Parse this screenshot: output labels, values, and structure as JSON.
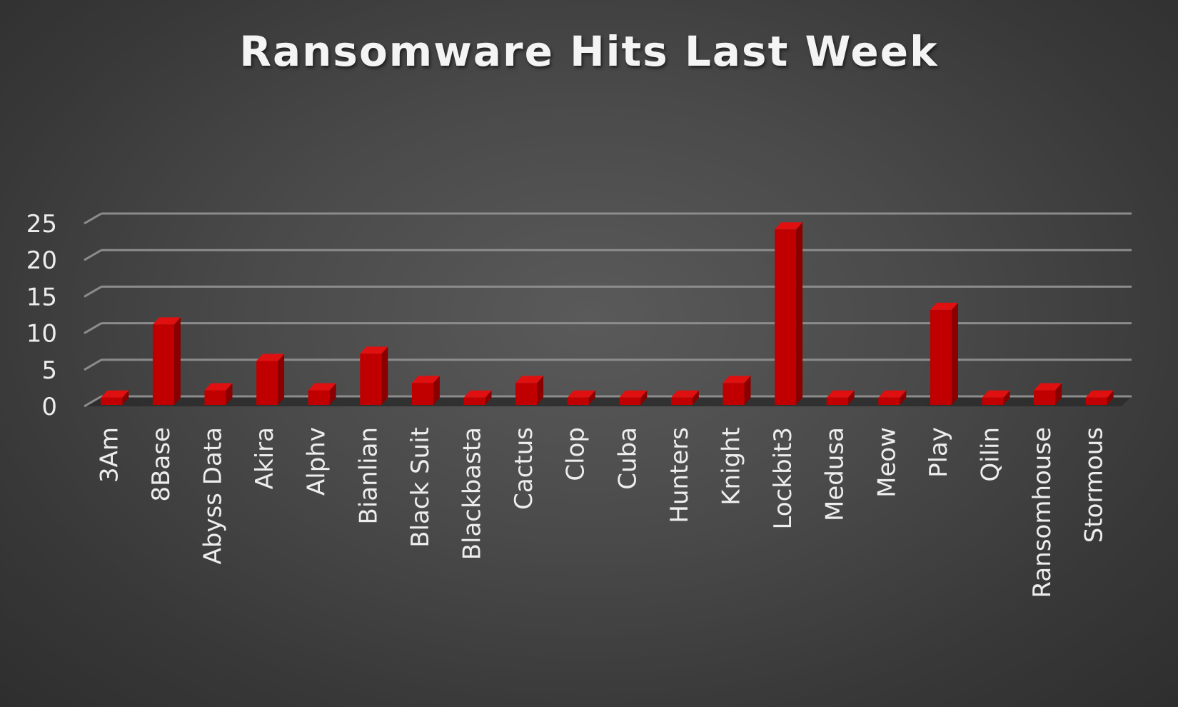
{
  "chart_data": {
    "type": "bar",
    "title": "Ransomware Hits Last Week",
    "xlabel": "",
    "ylabel": "",
    "categories": [
      "3Am",
      "8Base",
      "Abyss Data",
      "Akira",
      "Alphv",
      "Bianlian",
      "Black Suit",
      "Blackbasta",
      "Cactus",
      "Clop",
      "Cuba",
      "Hunters",
      "Knight",
      "Lockbit3",
      "Medusa",
      "Meow",
      "Play",
      "Qilin",
      "Ransomhouse",
      "Stormous"
    ],
    "values": [
      1,
      11,
      2,
      6,
      2,
      7,
      3,
      1,
      3,
      1,
      1,
      1,
      3,
      24,
      1,
      1,
      13,
      1,
      2,
      1
    ],
    "ylim": [
      0,
      25
    ],
    "yticks": [
      0,
      5,
      10,
      15,
      20,
      25
    ],
    "grid": true,
    "legend": "none",
    "style": "3d-column"
  },
  "colors": {
    "bar_front": "#c00000",
    "bar_top": "#e01010",
    "bar_side": "#8a0000",
    "gridline": "#8c8c8c",
    "text": "#ededed"
  }
}
